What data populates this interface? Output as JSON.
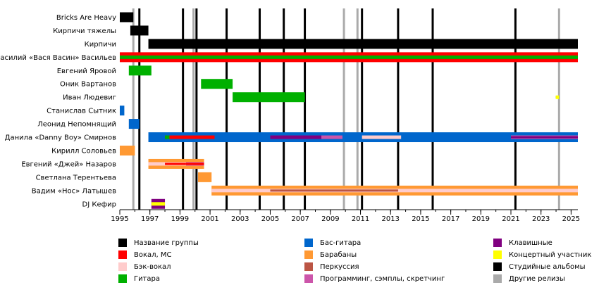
{
  "chart_data": {
    "type": "timeline",
    "title": "",
    "xlabel": "",
    "ylabel": "",
    "xlim": [
      1995.0,
      2025.45
    ],
    "x_ticks": [
      1995,
      1997,
      1999,
      2001,
      2003,
      2005,
      2007,
      2009,
      2011,
      2013,
      2015,
      2017,
      2019,
      2021,
      2023,
      2025
    ],
    "members": [
      "Bricks Are Heavy",
      "Кирпичи тяжелы",
      "Кирпичи",
      "Василий «Вася Васин» Васильев",
      "Евгений Яровой",
      "Оник Вартанов",
      "Иван Людевиг",
      "Станислав Сытник",
      "Леонид Непомнящий",
      "Данила «Danny Boy» Смирнов",
      "Кирилл Соловьев",
      "Евгений «Джей» Назаров",
      "Светлана Терентьева",
      "Вадим «Нос» Латышев",
      "DJ Кефир"
    ],
    "roles": {
      "name": {
        "label": "Название группы",
        "color": "#000000"
      },
      "vocal": {
        "label": "Вокал, МС",
        "color": "#ff0000"
      },
      "backing": {
        "label": "Бэк-вокал",
        "color": "#ffcccc"
      },
      "guitar": {
        "label": "Гитара",
        "color": "#00b000"
      },
      "bass": {
        "label": "Бас-гитара",
        "color": "#0066cc"
      },
      "drums": {
        "label": "Барабаны",
        "color": "#ff9933"
      },
      "perc": {
        "label": "Перкуссия",
        "color": "#bb5544"
      },
      "prog": {
        "label": "Программинг, сэмплы, скретчинг",
        "color": "#cc55aa"
      },
      "keys": {
        "label": "Клавишные",
        "color": "#800080"
      },
      "live": {
        "label": "Концертный участник",
        "color": "#ffff00"
      },
      "album": {
        "label": "Студийные альбомы",
        "color": "#000000"
      },
      "other": {
        "label": "Другие релизы",
        "color": "#aaaaaa"
      }
    },
    "legend_layout": [
      [
        "name",
        "vocal",
        "backing",
        "guitar"
      ],
      [
        "bass",
        "drums",
        "perc",
        "prog"
      ],
      [
        "keys",
        "live",
        "album",
        "other"
      ]
    ],
    "studio_albums": [
      1996.3,
      1999.2,
      2000.1,
      2002.1,
      2004.3,
      2005.9,
      2007.3,
      2011.1,
      2013.5,
      2015.8,
      2021.3
    ],
    "other_releases": [
      1995.9,
      1999.9,
      2009.9,
      2010.8,
      2024.2
    ],
    "bars": [
      {
        "member": 0,
        "role": "name",
        "start": 1995.0,
        "end": 1995.9
      },
      {
        "member": 1,
        "role": "name",
        "start": 1995.7,
        "end": 1996.9
      },
      {
        "member": 2,
        "role": "name",
        "start": 1996.9,
        "end": 2025.45
      },
      {
        "member": 3,
        "role": "vocal",
        "start": 1995.0,
        "end": 2025.45
      },
      {
        "member": 3,
        "role": "guitar",
        "start": 1995.0,
        "end": 2025.45,
        "layer": "inner"
      },
      {
        "member": 4,
        "role": "guitar",
        "start": 1995.6,
        "end": 1997.1
      },
      {
        "member": 5,
        "role": "guitar",
        "start": 2000.4,
        "end": 2002.5
      },
      {
        "member": 6,
        "role": "guitar",
        "start": 2002.5,
        "end": 2007.3
      },
      {
        "member": 6,
        "role": "guitar",
        "start": 2023.98,
        "end": 2024.2,
        "layer": "thin"
      },
      {
        "member": 6,
        "role": "live",
        "start": 2023.98,
        "end": 2024.2,
        "layer": "inner"
      },
      {
        "member": 7,
        "role": "bass",
        "start": 1995.0,
        "end": 1995.3
      },
      {
        "member": 8,
        "role": "bass",
        "start": 1995.6,
        "end": 1996.3
      },
      {
        "member": 9,
        "role": "bass",
        "start": 1996.9,
        "end": 2025.45
      },
      {
        "member": 9,
        "role": "backing",
        "start": 2011.1,
        "end": 2013.7,
        "layer": "inner"
      },
      {
        "member": 9,
        "role": "vocal",
        "start": 1998.0,
        "end": 2001.3,
        "layer": "inner"
      },
      {
        "member": 9,
        "role": "guitar",
        "start": 1998.0,
        "end": 1998.3,
        "layer": "inner"
      },
      {
        "member": 9,
        "role": "prog",
        "start": 2005.0,
        "end": 2009.8,
        "layer": "inner"
      },
      {
        "member": 9,
        "role": "keys",
        "start": 2005.0,
        "end": 2008.4,
        "layer": "inner"
      },
      {
        "member": 9,
        "role": "prog",
        "start": 2021.0,
        "end": 2025.45,
        "layer": "inner"
      },
      {
        "member": 9,
        "role": "keys",
        "start": 2021.0,
        "end": 2025.45,
        "layer": "thin"
      },
      {
        "member": 10,
        "role": "drums",
        "start": 1995.0,
        "end": 1996.0
      },
      {
        "member": 11,
        "role": "drums",
        "start": 1996.9,
        "end": 2000.6
      },
      {
        "member": 11,
        "role": "backing",
        "start": 1996.9,
        "end": 2000.6,
        "layer": "inner"
      },
      {
        "member": 11,
        "role": "vocal",
        "start": 1998.0,
        "end": 1999.4,
        "layer": "thin"
      },
      {
        "member": 11,
        "role": "prog",
        "start": 1999.4,
        "end": 2000.6,
        "layer": "inner"
      },
      {
        "member": 11,
        "role": "vocal",
        "start": 1999.4,
        "end": 2000.6,
        "layer": "thin"
      },
      {
        "member": 12,
        "role": "drums",
        "start": 2000.2,
        "end": 2001.1
      },
      {
        "member": 13,
        "role": "drums",
        "start": 2001.1,
        "end": 2025.45
      },
      {
        "member": 13,
        "role": "backing",
        "start": 2001.1,
        "end": 2025.45,
        "layer": "inner"
      },
      {
        "member": 13,
        "role": "perc",
        "start": 2005.0,
        "end": 2013.5,
        "layer": "thin"
      },
      {
        "member": 14,
        "role": "keys",
        "start": 1997.1,
        "end": 1998.0
      },
      {
        "member": 14,
        "role": "live",
        "start": 1997.1,
        "end": 1998.0,
        "layer": "inner"
      }
    ]
  }
}
